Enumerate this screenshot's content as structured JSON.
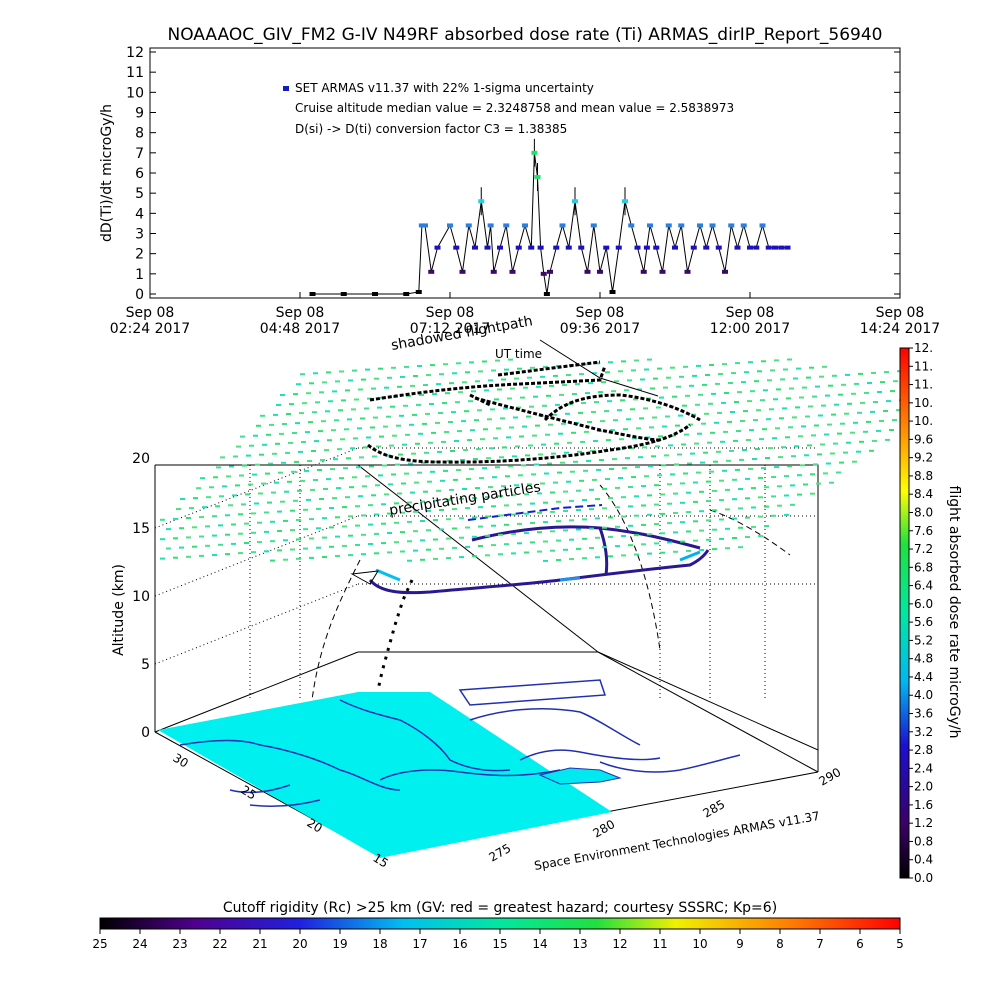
{
  "chart_data": [
    {
      "type": "scatter",
      "title": "NOAAAOC_GIV_FM2 G-IV   N49RF  absorbed dose rate (Ti) ARMAS_dirIP_Report_56940",
      "ylabel": "dD(Ti)/dt microGy/h",
      "ylim": [
        0,
        12
      ],
      "yticks": [
        "0",
        "1",
        "2",
        "3",
        "4",
        "5",
        "6",
        "7",
        "8",
        "9",
        "10",
        "11",
        "12"
      ],
      "xticks": [
        {
          "l1": "Sep 08",
          "l2": "02:24 2017"
        },
        {
          "l1": "Sep 08",
          "l2": "04:48 2017"
        },
        {
          "l1": "Sep 08",
          "l2": "07:12 2017"
        },
        {
          "l1": "Sep 08",
          "l2": "09:36 2017"
        },
        {
          "l1": "Sep 08",
          "l2": "12:00 2017"
        },
        {
          "l1": "Sep 08",
          "l2": "14:24 2017"
        }
      ],
      "xlim_hours": [
        2.4,
        14.4
      ],
      "legend": [
        "SET ARMAS v11.37 with 22% 1-sigma uncertainty",
        "Cruise altitude median value = 2.3248758 and mean value = 2.5838973",
        "D(si) -> D(ti) conversion factor C3 = 1.38385"
      ],
      "legend_marker_color": "#1020c0",
      "grid": false,
      "series": [
        {
          "x_hours": [
            5.0,
            5.5,
            6.0,
            6.5,
            6.7,
            6.75,
            6.8,
            6.9,
            7.0,
            7.2,
            7.3,
            7.4,
            7.5,
            7.6,
            7.7,
            7.8,
            7.85,
            7.9,
            8.0,
            8.1,
            8.2,
            8.3,
            8.4,
            8.5,
            8.55,
            8.6,
            8.65,
            8.7,
            8.75,
            8.8,
            8.9,
            9.0,
            9.1,
            9.2,
            9.3,
            9.4,
            9.5,
            9.6,
            9.7,
            9.8,
            9.9,
            10.0,
            10.1,
            10.2,
            10.3,
            10.35,
            10.4,
            10.5,
            10.6,
            10.7,
            10.8,
            10.9,
            11.0,
            11.1,
            11.2,
            11.3,
            11.4,
            11.5,
            11.6,
            11.7,
            11.8,
            11.9,
            12.0,
            12.1,
            12.2,
            12.3,
            12.4,
            12.5,
            12.6
          ],
          "y": [
            0,
            0,
            0,
            0,
            0.1,
            3.4,
            3.4,
            1.1,
            2.3,
            3.4,
            2.3,
            1.1,
            3.4,
            2.3,
            4.6,
            2.3,
            3.4,
            1.1,
            2.3,
            3.4,
            1.1,
            2.3,
            3.4,
            2.3,
            7.0,
            5.8,
            2.3,
            1.0,
            0,
            1.1,
            2.3,
            3.4,
            2.3,
            4.6,
            2.3,
            1.1,
            3.4,
            1.1,
            2.3,
            0.1,
            2.3,
            4.6,
            3.4,
            2.3,
            1.1,
            2.3,
            3.4,
            2.3,
            1.1,
            3.4,
            2.3,
            3.4,
            1.1,
            2.3,
            3.4,
            2.3,
            3.4,
            2.3,
            1.1,
            3.4,
            2.3,
            3.4,
            2.3,
            2.3,
            3.4,
            2.3,
            2.3,
            2.3,
            2.3
          ]
        }
      ]
    },
    {
      "type": "other",
      "chart_kind": "3d flight path over map",
      "labels": {
        "shadow": "shadowed flightpath",
        "ut": "UT time",
        "precip": "precipitating particles",
        "zlabel": "Altitude (km)",
        "credit": "Space Environment Technologies ARMAS v11.37"
      },
      "zticks": [
        "0",
        "5",
        "10",
        "15",
        "20"
      ],
      "lat_ticks": [
        "30",
        "25",
        "20",
        "15"
      ],
      "lon_ticks": [
        "275",
        "280",
        "285",
        "290"
      ]
    },
    {
      "type": "colorbar",
      "label": "flight absorbed dose rate microGy/h",
      "ticks": [
        "0.0",
        "0.4",
        "0.8",
        "1.2",
        "1.6",
        "2.0",
        "2.4",
        "2.8",
        "3.2",
        "3.6",
        "4.0",
        "4.4",
        "4.8",
        "5.2",
        "5.6",
        "6.0",
        "6.4",
        "6.8",
        "7.2",
        "7.6",
        "8.0",
        "8.4",
        "8.8",
        "9.2",
        "9.6",
        "10.",
        "10.",
        "11.",
        "11.",
        "12."
      ]
    },
    {
      "type": "colorbar",
      "label": "Cutoff rigidity (Rc) >25 km (GV: red = greatest hazard; courtesy SSSRC; Kp=6)",
      "ticks": [
        "25",
        "24",
        "23",
        "22",
        "21",
        "20",
        "19",
        "18",
        "17",
        "16",
        "15",
        "14",
        "13",
        "12",
        "11",
        "10",
        "9",
        "8",
        "7",
        "6",
        "5"
      ]
    }
  ]
}
